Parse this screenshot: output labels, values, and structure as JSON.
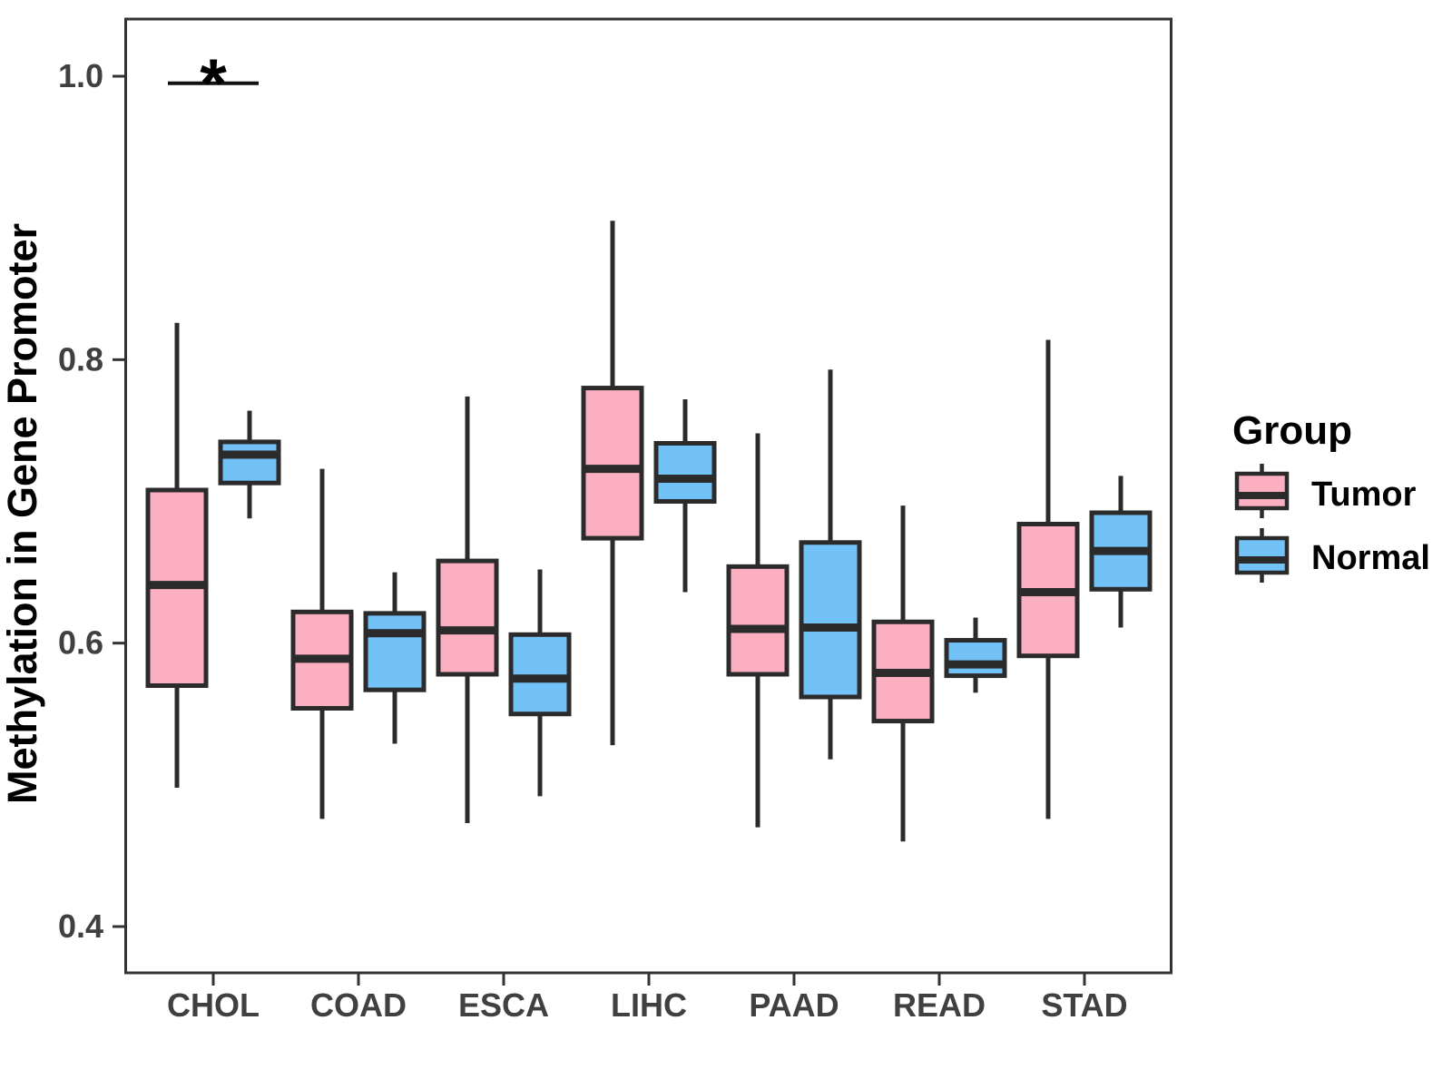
{
  "chart_data": {
    "type": "boxplot",
    "title": "",
    "xlabel": "",
    "ylabel": "Methylation in Gene Promoter",
    "categories": [
      "CHOL",
      "COAD",
      "ESCA",
      "LIHC",
      "PAAD",
      "READ",
      "STAD"
    ],
    "y_ticks": [
      {
        "label": "1.0",
        "value": 1.0
      },
      {
        "label": "0.8",
        "value": 0.8
      },
      {
        "label": "0.6",
        "value": 0.6
      },
      {
        "label": "0.4",
        "value": 0.4
      }
    ],
    "ylim": [
      0.37,
      1.04
    ],
    "grid": false,
    "legend_position": "right",
    "box_stats_order": [
      "whisker_low",
      "q1",
      "median",
      "q3",
      "whisker_high"
    ],
    "series": [
      {
        "name": "Tumor",
        "color": "#FCAFC0",
        "values": [
          [
            0.498,
            0.57,
            0.641,
            0.708,
            0.826
          ],
          [
            0.476,
            0.554,
            0.589,
            0.622,
            0.723
          ],
          [
            0.473,
            0.578,
            0.609,
            0.658,
            0.774
          ],
          [
            0.528,
            0.674,
            0.723,
            0.78,
            0.898
          ],
          [
            0.47,
            0.578,
            0.61,
            0.654,
            0.748
          ],
          [
            0.46,
            0.545,
            0.579,
            0.615,
            0.697
          ],
          [
            0.476,
            0.591,
            0.636,
            0.684,
            0.814
          ]
        ]
      },
      {
        "name": "Normal",
        "color": "#72C1F7",
        "values": [
          [
            0.688,
            0.713,
            0.733,
            0.742,
            0.764
          ],
          [
            0.529,
            0.567,
            0.607,
            0.621,
            0.65
          ],
          [
            0.492,
            0.55,
            0.575,
            0.606,
            0.652
          ],
          [
            0.636,
            0.7,
            0.716,
            0.741,
            0.772
          ],
          [
            0.518,
            0.562,
            0.611,
            0.671,
            0.793
          ],
          [
            0.565,
            0.577,
            0.585,
            0.602,
            0.618
          ],
          [
            0.611,
            0.638,
            0.665,
            0.692,
            0.718
          ]
        ]
      }
    ],
    "annotations": [
      {
        "text": "*",
        "category": "CHOL",
        "type": "significance-bar",
        "bar_y_value": 0.995
      }
    ]
  },
  "legend": {
    "title": "Group",
    "items": [
      {
        "label": "Tumor",
        "color": "#FCAFC0"
      },
      {
        "label": "Normal",
        "color": "#72C1F7"
      }
    ]
  },
  "colors": {
    "tumor_fill": "#FCAFC0",
    "normal_fill": "#72C1F7",
    "box_stroke": "#2B2B2B",
    "axis": "#333333",
    "tick_text": "#404040",
    "annotation": "#111111",
    "background": "#FFFFFF"
  }
}
